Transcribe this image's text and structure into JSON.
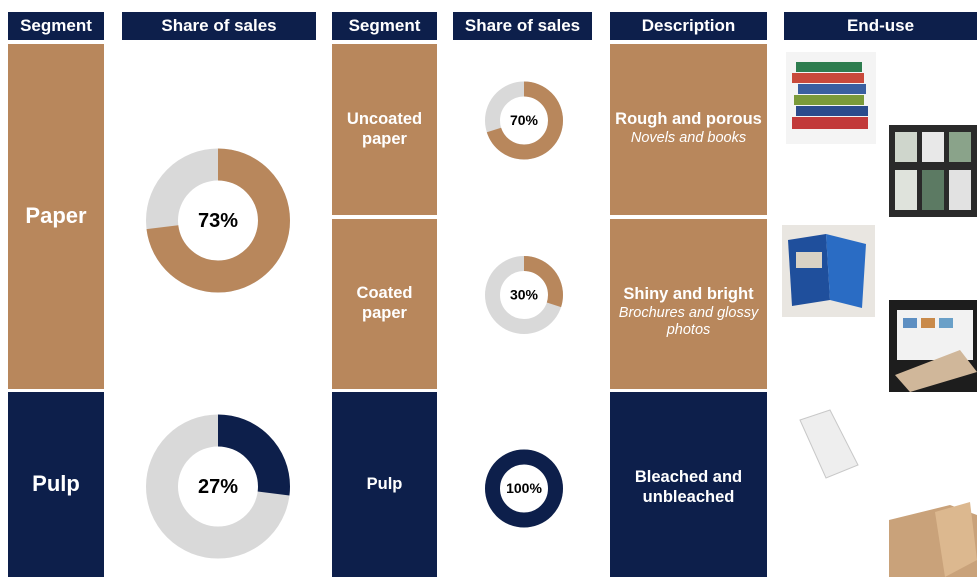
{
  "headers": [
    "Segment",
    "Share of sales",
    "Segment",
    "Share of sales",
    "Description",
    "End-use"
  ],
  "segments": [
    {
      "name": "Paper",
      "share": 73,
      "share_label": "73%",
      "color": "#b8875c"
    },
    {
      "name": "Pulp",
      "share": 27,
      "share_label": "27%",
      "color": "#0d1f4b"
    }
  ],
  "subsegments": [
    {
      "name": "Uncoated paper",
      "share": 70,
      "share_label": "70%",
      "color": "#b8875c",
      "description": "Rough and porous",
      "use": "Novels and books"
    },
    {
      "name": "Coated paper",
      "share": 30,
      "share_label": "30%",
      "color": "#b8875c",
      "description": "Shiny and bright",
      "use": "Brochures and glossy photos"
    },
    {
      "name": "Pulp",
      "share": 100,
      "share_label": "100%",
      "color": "#0d1f4b",
      "description": "Bleached and unbleached"
    }
  ]
}
